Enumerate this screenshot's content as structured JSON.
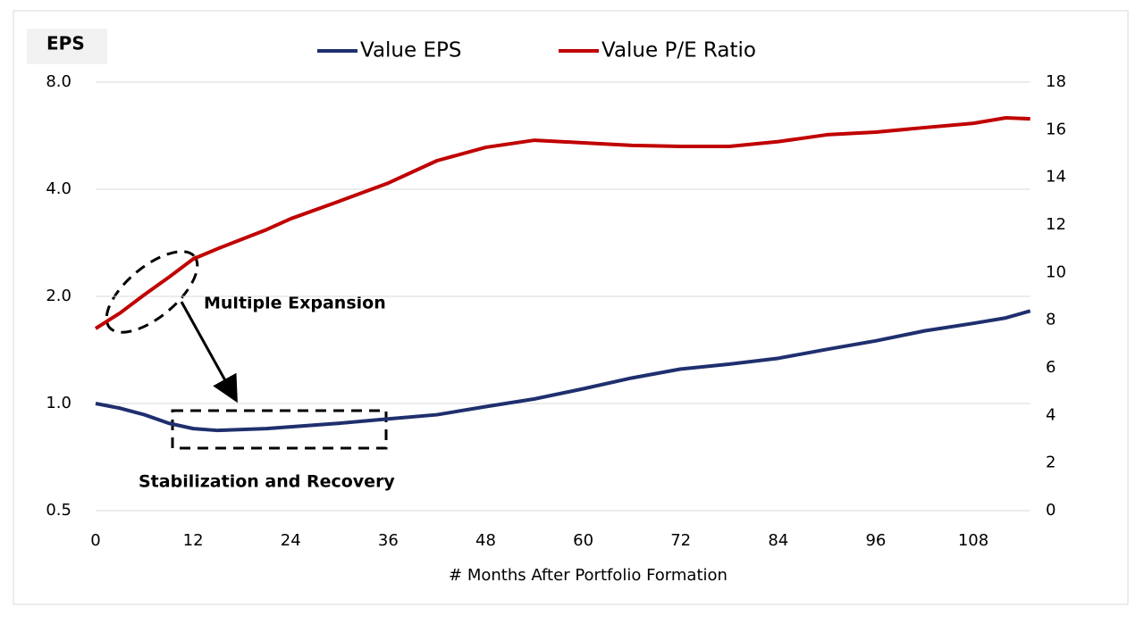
{
  "chart_data": {
    "type": "line",
    "ylabel": "EPS",
    "xlabel": "# Months After Portfolio Formation",
    "annotations": [
      "Multiple Expansion",
      "Stabilization and Recovery"
    ],
    "x": [
      0,
      3,
      6,
      9,
      12,
      15,
      18,
      21,
      24,
      30,
      36,
      42,
      48,
      54,
      60,
      66,
      72,
      78,
      84,
      90,
      96,
      102,
      108,
      112,
      115
    ],
    "series": [
      {
        "name": "Value EPS",
        "color": "#1f2f6e",
        "axis": "y",
        "values": [
          1.0,
          0.97,
          0.93,
          0.88,
          0.85,
          0.84,
          0.845,
          0.85,
          0.86,
          0.88,
          0.905,
          0.93,
          0.98,
          1.03,
          1.1,
          1.18,
          1.25,
          1.29,
          1.34,
          1.42,
          1.5,
          1.6,
          1.68,
          1.74,
          1.82
        ]
      },
      {
        "name": "Value P/E Ratio",
        "color": "#c00000",
        "axis": "y2",
        "values": [
          7.65,
          8.3,
          9.07,
          9.8,
          10.57,
          11.0,
          11.4,
          11.8,
          12.26,
          13.0,
          13.76,
          14.7,
          15.26,
          15.56,
          15.45,
          15.34,
          15.3,
          15.3,
          15.5,
          15.79,
          15.9,
          16.09,
          16.27,
          16.5,
          16.46
        ]
      }
    ],
    "xlim": [
      0,
      115
    ],
    "xticks": [
      0,
      12,
      24,
      36,
      48,
      60,
      72,
      84,
      96,
      108
    ],
    "ylim": [
      0.5,
      8
    ],
    "ylog": true,
    "yticks": [
      {
        "value": 0.5,
        "label": "0.5"
      },
      {
        "value": 1,
        "label": "1.0"
      },
      {
        "value": 2,
        "label": "2.0"
      },
      {
        "value": 4,
        "label": "4.0"
      },
      {
        "value": 8,
        "label": "8.0"
      }
    ],
    "y2lim": [
      0,
      18
    ],
    "y2ticks": [
      0,
      2,
      4,
      6,
      8,
      10,
      12,
      14,
      16,
      18
    ],
    "grid": true,
    "legend": "top"
  }
}
